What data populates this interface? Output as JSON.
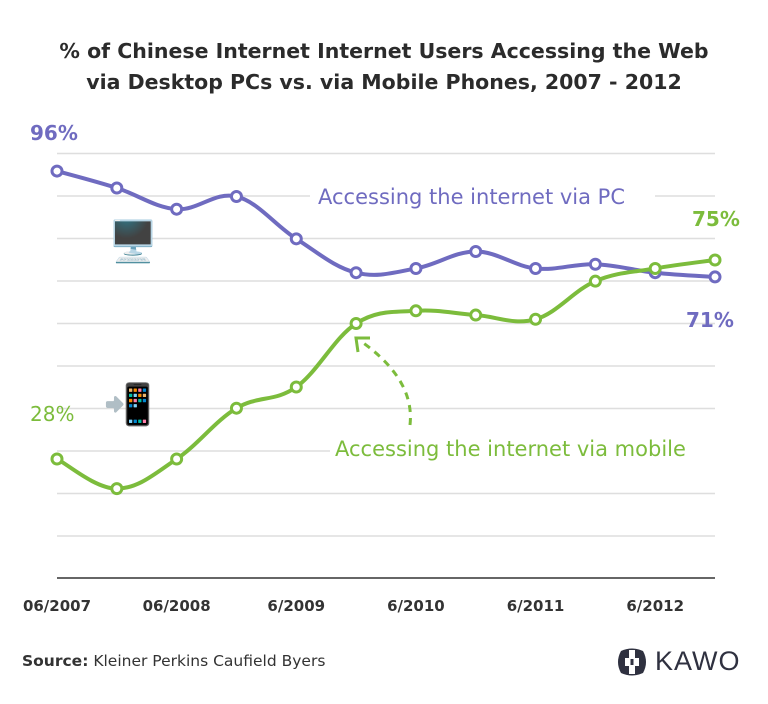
{
  "chart_data": {
    "type": "line",
    "title_line1": "% of Chinese Internet Internet Users Accessing the Web",
    "title_line2": "via Desktop PCs vs. via Mobile Phones, 2007 - 2012",
    "x": [
      "06/2007",
      "12/2007",
      "06/2008",
      "12/2008",
      "06/2009",
      "12/2009",
      "06/2010",
      "12/2010",
      "06/2011",
      "12/2011",
      "06/2012",
      "12/2012"
    ],
    "x_tick_labels": [
      "06/2007",
      "06/2008",
      "6/2009",
      "6/2010",
      "6/2011",
      "6/2012"
    ],
    "ylim": [
      10,
      100
    ],
    "grid": true,
    "series": [
      {
        "name": "Accessing the internet via PC",
        "color": "#6f6bc0",
        "values": [
          96,
          92,
          87,
          90,
          80,
          72,
          73,
          77,
          73,
          74,
          72,
          71
        ],
        "start_label": "96%",
        "end_label": "71%",
        "icon": "desktop-computer-icon"
      },
      {
        "name": "Accessing the internet via mobile",
        "color": "#7cbc3c",
        "values": [
          28,
          21,
          28,
          40,
          45,
          60,
          63,
          62,
          61,
          70,
          73,
          75
        ],
        "start_label": "28%",
        "end_label": "75%",
        "icon": "mobile-phone-icon"
      }
    ]
  },
  "source_label": "Source:",
  "source_text": "Kleiner Perkins Caufield Byers",
  "logo_text": "KAWO"
}
